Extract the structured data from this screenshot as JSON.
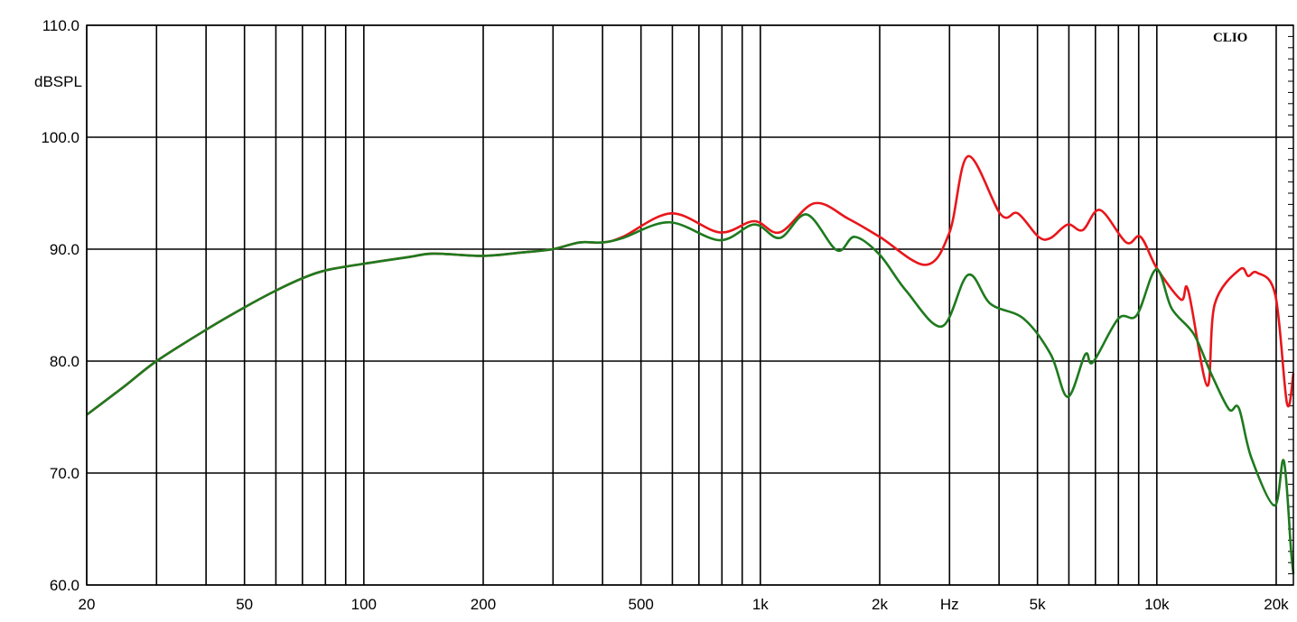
{
  "chart_data": {
    "type": "line",
    "title": "",
    "logo": "CLIO",
    "xlabel": "Hz",
    "ylabel": "dBSPL",
    "x_scale": "log",
    "xlim": [
      20,
      22100
    ],
    "ylim": [
      60,
      110
    ],
    "grid": true,
    "y_ticks": [
      "60.0",
      "70.0",
      "80.0",
      "90.0",
      "100.0",
      "110.0"
    ],
    "y_tick_values": [
      60,
      70,
      80,
      90,
      100,
      110
    ],
    "x_tick_labels": [
      {
        "value": 20,
        "label": "20"
      },
      {
        "value": 50,
        "label": "50"
      },
      {
        "value": 100,
        "label": "100"
      },
      {
        "value": 200,
        "label": "200"
      },
      {
        "value": 500,
        "label": "500"
      },
      {
        "value": 1000,
        "label": "1k"
      },
      {
        "value": 2000,
        "label": "2k"
      },
      {
        "value": 3000,
        "label": "Hz"
      },
      {
        "value": 5000,
        "label": "5k"
      },
      {
        "value": 10000,
        "label": "10k"
      },
      {
        "value": 20000,
        "label": "20k"
      }
    ],
    "x_gridlines": [
      20,
      30,
      40,
      50,
      60,
      70,
      80,
      90,
      100,
      200,
      300,
      400,
      500,
      600,
      700,
      800,
      900,
      1000,
      2000,
      3000,
      4000,
      5000,
      6000,
      7000,
      8000,
      9000,
      10000,
      20000
    ],
    "colors": {
      "red": "#e8161b",
      "green": "#1e7a1e",
      "grid": "#000000"
    },
    "series": [
      {
        "color": "red",
        "x": [
          20,
          25,
          30,
          40,
          50,
          60,
          70,
          80,
          100,
          130,
          150,
          200,
          250,
          300,
          350,
          400,
          450,
          596,
          790,
          965,
          1120,
          1370,
          1670,
          2000,
          2610,
          3000,
          3340,
          4040,
          4460,
          5030,
          5400,
          5960,
          6500,
          7190,
          8370,
          9100,
          10000,
          11500,
          12000,
          13400,
          14000,
          16200,
          17000,
          17900,
          19900,
          21300,
          22100
        ],
        "y": [
          75.2,
          77.8,
          80.0,
          82.8,
          84.8,
          86.3,
          87.4,
          88.1,
          88.7,
          89.3,
          89.6,
          89.4,
          89.7,
          90.0,
          90.6,
          90.6,
          91.1,
          93.2,
          91.5,
          92.5,
          91.5,
          94.1,
          92.7,
          91.1,
          88.6,
          91.5,
          98.3,
          93.1,
          93.2,
          91.1,
          91.0,
          92.2,
          91.7,
          93.5,
          90.6,
          91.1,
          88.3,
          85.5,
          86.3,
          77.8,
          85.1,
          88.2,
          87.6,
          87.9,
          85.9,
          76.2,
          78.9
        ]
      },
      {
        "color": "green",
        "x": [
          20,
          25,
          30,
          40,
          50,
          60,
          70,
          80,
          100,
          130,
          150,
          200,
          250,
          300,
          350,
          400,
          450,
          590,
          790,
          965,
          1120,
          1310,
          1560,
          1730,
          2000,
          2330,
          2870,
          3340,
          3810,
          4610,
          5400,
          5960,
          6600,
          6900,
          8000,
          8900,
          9970,
          10900,
          12400,
          13700,
          15200,
          16100,
          17300,
          19800,
          20900,
          21800,
          22100
        ],
        "y": [
          75.2,
          77.8,
          80.0,
          82.8,
          84.8,
          86.3,
          87.4,
          88.1,
          88.7,
          89.3,
          89.6,
          89.4,
          89.7,
          90.0,
          90.6,
          90.6,
          91.0,
          92.4,
          90.8,
          92.2,
          91.0,
          93.1,
          89.9,
          91.1,
          89.5,
          86.3,
          83.1,
          87.7,
          85.1,
          83.8,
          80.6,
          76.8,
          80.6,
          79.9,
          83.8,
          84.1,
          88.2,
          84.7,
          82.4,
          78.9,
          75.7,
          75.8,
          71.4,
          67.1,
          71.1,
          63.1,
          61.0
        ]
      }
    ]
  }
}
